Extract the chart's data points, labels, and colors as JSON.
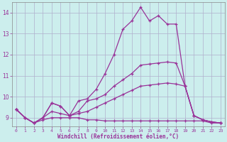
{
  "title": "",
  "xlabel": "Windchill (Refroidissement éolien,°C)",
  "ylabel": "",
  "bg_color": "#cceeed",
  "grid_color": "#b0b0cc",
  "line_color": "#993399",
  "xlim": [
    -0.5,
    23.5
  ],
  "ylim": [
    8.6,
    14.5
  ],
  "xticks": [
    0,
    1,
    2,
    3,
    4,
    5,
    6,
    7,
    8,
    9,
    10,
    11,
    12,
    13,
    14,
    15,
    16,
    17,
    18,
    19,
    20,
    21,
    22,
    23
  ],
  "yticks": [
    9,
    10,
    11,
    12,
    13,
    14
  ],
  "series": [
    [
      9.4,
      9.0,
      8.75,
      9.0,
      9.7,
      9.55,
      9.1,
      9.8,
      9.9,
      10.35,
      11.1,
      12.0,
      13.2,
      13.6,
      14.25,
      13.6,
      13.85,
      13.45,
      13.45,
      10.5,
      9.1,
      8.9,
      8.8,
      8.75
    ],
    [
      9.4,
      9.0,
      8.75,
      9.0,
      9.7,
      9.55,
      9.1,
      9.3,
      9.8,
      9.9,
      10.1,
      10.5,
      10.8,
      11.1,
      11.5,
      11.55,
      11.6,
      11.65,
      11.6,
      10.5,
      9.1,
      8.9,
      8.8,
      8.75
    ],
    [
      9.4,
      9.0,
      8.75,
      8.9,
      9.0,
      9.0,
      9.0,
      9.0,
      8.9,
      8.9,
      8.85,
      8.85,
      8.85,
      8.85,
      8.85,
      8.85,
      8.85,
      8.85,
      8.85,
      8.85,
      8.85,
      8.85,
      8.75,
      8.75
    ],
    [
      9.4,
      9.0,
      8.75,
      9.0,
      9.3,
      9.2,
      9.1,
      9.2,
      9.3,
      9.5,
      9.7,
      9.9,
      10.1,
      10.3,
      10.5,
      10.55,
      10.6,
      10.65,
      10.6,
      10.5,
      9.1,
      8.9,
      8.8,
      8.75
    ]
  ]
}
